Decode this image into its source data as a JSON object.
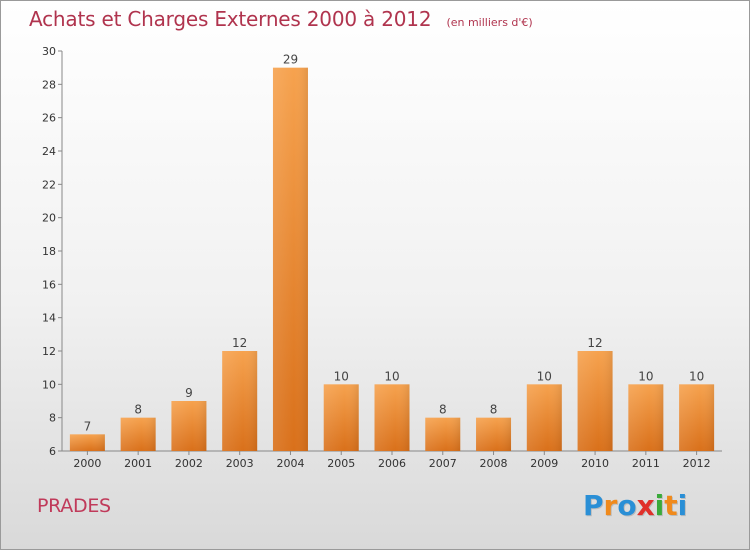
{
  "header": {
    "title": "Achats et Charges Externes 2000 à 2012",
    "subtitle": "(en milliers d'€)"
  },
  "footer": {
    "place": "PRADES",
    "logo": {
      "letters": [
        "P",
        "r",
        "o",
        "x",
        "i",
        "t",
        "i"
      ],
      "colors": [
        "#2a8fd6",
        "#f08a1c",
        "#2a8fd6",
        "#e0302a",
        "#3aaa3a",
        "#f08a1c",
        "#2a8fd6"
      ]
    }
  },
  "chart_data": {
    "type": "bar",
    "title": "Achats et Charges Externes 2000 à 2012",
    "categories": [
      "2000",
      "2001",
      "2002",
      "2003",
      "2004",
      "2005",
      "2006",
      "2007",
      "2008",
      "2009",
      "2010",
      "2011",
      "2012"
    ],
    "values": [
      7,
      8,
      9,
      12,
      29,
      10,
      10,
      8,
      8,
      10,
      12,
      10,
      10
    ],
    "ylim": [
      6,
      30
    ],
    "yticks": [
      6,
      8,
      10,
      12,
      14,
      16,
      18,
      20,
      22,
      24,
      26,
      28,
      30
    ],
    "grid": false,
    "bar_color_top": "#f6a24e",
    "bar_color_bottom": "#d9701a"
  }
}
